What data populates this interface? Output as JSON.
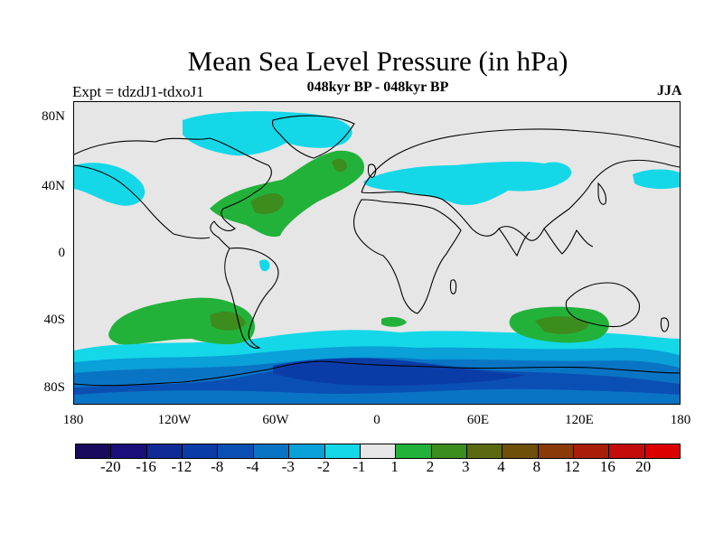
{
  "title": "Mean Sea Level Pressure (in hPa)",
  "subtitle": "048kyr BP - 048kyr BP",
  "left_label": "Expt = tdzdJ1-tdxoJ1",
  "right_label": "JJA",
  "y_ticks": [
    "80N",
    "40N",
    "0",
    "40S",
    "80S"
  ],
  "x_ticks": [
    "180",
    "120W",
    "60W",
    "0",
    "60E",
    "120E",
    "180"
  ],
  "colorbar": {
    "colors": [
      "#1a0a5e",
      "#1a0f7a",
      "#102a96",
      "#0a3ca8",
      "#0a50b4",
      "#0a74c4",
      "#0aa0d8",
      "#14d8e8",
      "#e6e6e6",
      "#22b23a",
      "#3d8c1e",
      "#5b6a10",
      "#6e5008",
      "#8a3a06",
      "#a81e06",
      "#c40c0a",
      "#dc0000"
    ],
    "labels": [
      "-20",
      "-16",
      "-12",
      "-8",
      "-4",
      "-3",
      "-2",
      "-1",
      "1",
      "2",
      "3",
      "4",
      "8",
      "12",
      "16",
      "20"
    ]
  },
  "colors": {
    "neutral": "#e6e6e6",
    "minus1": "#14d8e8",
    "minus2": "#0aa0d8",
    "minus3": "#0a74c4",
    "minus4": "#0a50b4",
    "minus8": "#0a3ca8",
    "plus1": "#22b23a",
    "plus2": "#3d8c1e",
    "plus3": "#5b6a10"
  }
}
